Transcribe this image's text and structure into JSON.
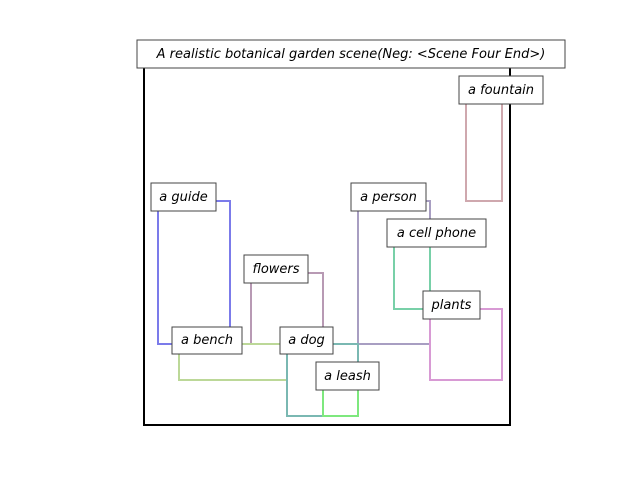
{
  "caption": "A realistic botanical garden scene(Neg: <Scene Four End>)",
  "frame_color": "#000000",
  "boxes": [
    {
      "label": "a fountain",
      "color": "#cfa8ae"
    },
    {
      "label": "a guide",
      "color": "#7b7bea"
    },
    {
      "label": "a person",
      "color": "#a89ec2"
    },
    {
      "label": "a cell phone",
      "color": "#78d0a8"
    },
    {
      "label": "flowers",
      "color": "#b89ab4"
    },
    {
      "label": "plants",
      "color": "#d89ad4"
    },
    {
      "label": "a bench",
      "color": "#bcd898"
    },
    {
      "label": "a dog",
      "color": "#7ab8b2"
    },
    {
      "label": "a leash",
      "color": "#7ee87e"
    }
  ]
}
